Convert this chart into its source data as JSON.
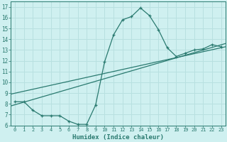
{
  "xlabel": "Humidex (Indice chaleur)",
  "bg_color": "#cff0f0",
  "grid_color": "#b8e0e0",
  "line_color": "#2a7a70",
  "xlim": [
    -0.5,
    23.5
  ],
  "ylim": [
    6,
    17.5
  ],
  "xticks": [
    0,
    1,
    2,
    3,
    4,
    5,
    6,
    7,
    8,
    9,
    10,
    11,
    12,
    13,
    14,
    15,
    16,
    17,
    18,
    19,
    20,
    21,
    22,
    23
  ],
  "yticks": [
    6,
    7,
    8,
    9,
    10,
    11,
    12,
    13,
    14,
    15,
    16,
    17
  ],
  "curve_x": [
    0,
    1,
    2,
    3,
    4,
    5,
    6,
    7,
    8,
    9,
    10,
    11,
    12,
    13,
    14,
    15,
    16,
    17,
    18,
    19,
    20,
    21,
    22,
    23
  ],
  "curve_y": [
    8.2,
    8.2,
    7.4,
    6.9,
    6.9,
    6.9,
    6.4,
    6.1,
    6.1,
    7.9,
    11.9,
    14.4,
    15.8,
    16.1,
    16.9,
    16.2,
    14.9,
    13.2,
    12.4,
    12.7,
    13.0,
    13.1,
    13.5,
    13.3
  ],
  "line1_x": [
    -0.5,
    23.5
  ],
  "line1_y": [
    7.8,
    13.6
  ],
  "line2_x": [
    -0.5,
    23.5
  ],
  "line2_y": [
    8.9,
    13.3
  ]
}
